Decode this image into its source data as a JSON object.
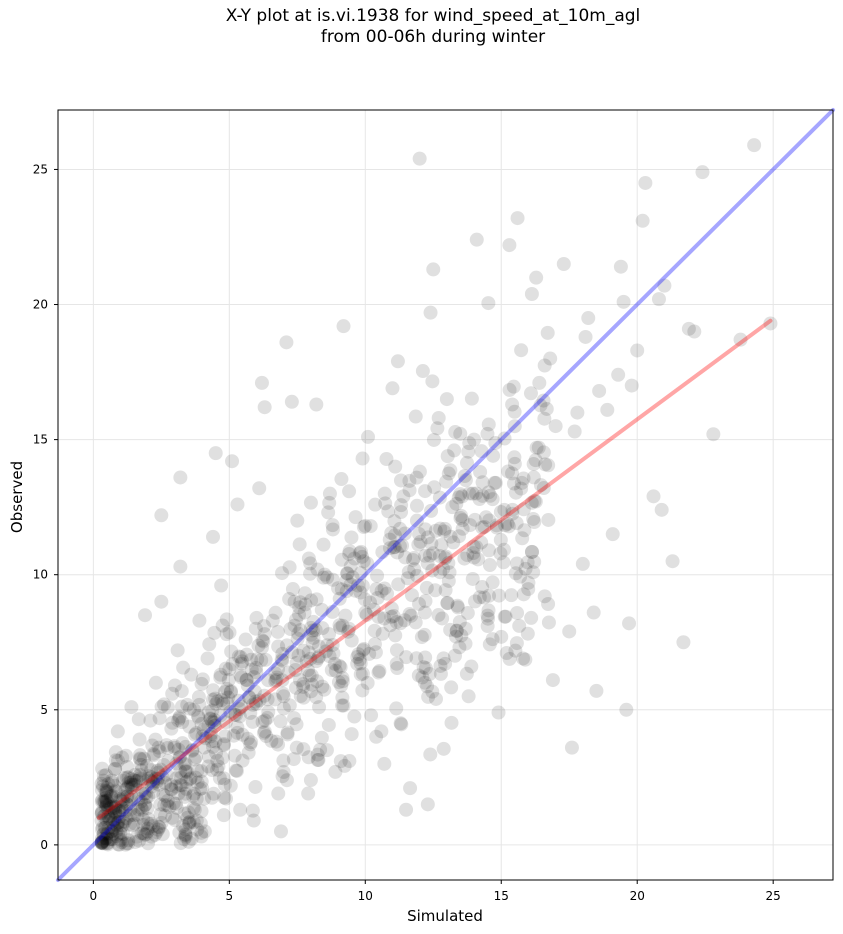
{
  "chart_data": {
    "type": "scatter",
    "title_line1": "X-Y plot at is.vi.1938 for wind_speed_at_10m_agl",
    "title_line2": "from 00-06h during winter",
    "xlabel": "Simulated",
    "ylabel": "Observed",
    "xlim": [
      -1.3,
      27.2
    ],
    "ylim": [
      -1.3,
      27.2
    ],
    "xticks": [
      0,
      5,
      10,
      15,
      20,
      25
    ],
    "yticks": [
      0,
      5,
      10,
      15,
      20,
      25
    ],
    "grid": true,
    "point_color": "#000000",
    "point_alpha": 0.12,
    "lines": [
      {
        "role": "1:1",
        "color": "#0000ff",
        "alpha": 0.35,
        "x": [
          -1.3,
          27.2
        ],
        "y": [
          -1.3,
          27.2
        ]
      },
      {
        "role": "fit",
        "color": "#ff0000",
        "alpha": 0.35,
        "x": [
          0.2,
          24.9
        ],
        "y": [
          1.0,
          19.4
        ]
      }
    ],
    "points": {
      "x": [
        12.0,
        24.3,
        22.4,
        20.3,
        14.1,
        15.3,
        15.6,
        11.2,
        12.5,
        7.1,
        12.4,
        20.2,
        19.4,
        21.9,
        17.3,
        18.2,
        6.2,
        6.3,
        7.3,
        8.2,
        9.2,
        10.1,
        11.0,
        4.5,
        3.2,
        5.1,
        2.5,
        13.0,
        14.7,
        16.4,
        17.7,
        18.9,
        19.8,
        21.0,
        22.8,
        23.8,
        24.9,
        20.9,
        21.3,
        19.7,
        18.4,
        17.5,
        16.9,
        16.1,
        15.8,
        15.2,
        13.7,
        13.2,
        12.8,
        11.8,
        11.4,
        10.6,
        10.2,
        9.6,
        9.0,
        8.4,
        7.8,
        7.2,
        6.6,
        6.0,
        5.6,
        4.9,
        4.2,
        3.6,
        3.0,
        2.6,
        2.1,
        1.7,
        1.2,
        0.8,
        0.5,
        0.3,
        1.0,
        1.5,
        2.0,
        2.8,
        3.4,
        4.0,
        4.6,
        5.2,
        5.8,
        6.4,
        7.0,
        7.6,
        8.2,
        8.8,
        9.4,
        10.0,
        10.8,
        11.6,
        12.2,
        12.9,
        13.5,
        14.2,
        14.8,
        15.5,
        16.3,
        17.0,
        17.8,
        18.6,
        19.3,
        20.0,
        0.6,
        1.1,
        1.6,
        2.2,
        2.9,
        3.5,
        4.1,
        0.9,
        1.4,
        2.3,
        3.1,
        3.9,
        4.7,
        1.8,
        2.7,
        3.8,
        5.4,
        6.8,
        8.0,
        9.1,
        10.4,
        11.3,
        12.6,
        13.9,
        15.0,
        16.6,
        18.0,
        19.1,
        20.6,
        12.1,
        13.3,
        14.5,
        11.9,
        10.9,
        9.8,
        8.6,
        7.4,
        6.2,
        5.0,
        3.7,
        2.4,
        1.3,
        17.6,
        18.5,
        19.6,
        21.7,
        13.8,
        14.9,
        16.0,
        9.5,
        8.9,
        7.9,
        10.7,
        11.5,
        12.3,
        6.9,
        5.9,
        4.8,
        3.3,
        2.0,
        0.7,
        1.9,
        2.5,
        3.2,
        4.4,
        5.3,
        6.1,
        7.5,
        8.7,
        9.9,
        11.1,
        12.7,
        14.0,
        15.4,
        16.8,
        18.1,
        19.5,
        20.8,
        22.1
      ],
      "y": [
        25.4,
        25.9,
        24.9,
        24.5,
        22.4,
        22.2,
        23.2,
        17.9,
        21.3,
        18.6,
        19.7,
        23.1,
        21.4,
        19.1,
        21.5,
        19.5,
        17.1,
        16.2,
        16.4,
        16.3,
        19.2,
        15.1,
        16.9,
        14.5,
        13.6,
        14.2,
        12.2,
        16.5,
        14.4,
        17.1,
        15.3,
        16.1,
        17.0,
        20.7,
        15.2,
        18.7,
        19.3,
        12.4,
        10.5,
        8.2,
        8.6,
        7.9,
        6.1,
        8.4,
        6.9,
        7.1,
        13.5,
        12.5,
        11.1,
        10.2,
        12.9,
        9.4,
        11.8,
        10.6,
        9.5,
        8.7,
        8.9,
        9.1,
        8.3,
        8.4,
        7.6,
        7.8,
        6.9,
        6.3,
        5.9,
        5.2,
        4.6,
        3.9,
        3.3,
        2.8,
        1.6,
        0.9,
        0.6,
        1.1,
        0.8,
        1.4,
        0.3,
        2.1,
        2.9,
        3.3,
        3.8,
        4.7,
        5.5,
        6.1,
        6.8,
        7.4,
        8.0,
        8.6,
        9.3,
        10.1,
        10.7,
        11.6,
        12.1,
        12.8,
        13.4,
        14.1,
        14.7,
        15.5,
        16.0,
        16.8,
        17.4,
        18.3,
        0.2,
        0.4,
        0.3,
        0.7,
        1.0,
        1.2,
        0.5,
        4.2,
        5.1,
        6.0,
        7.2,
        8.3,
        9.6,
        2.0,
        2.6,
        1.7,
        1.3,
        1.9,
        2.4,
        3.1,
        4.0,
        4.5,
        5.4,
        6.6,
        7.7,
        9.2,
        10.4,
        11.5,
        12.9,
        6.2,
        7.0,
        8.1,
        12.0,
        11.3,
        10.8,
        9.9,
        9.0,
        7.3,
        6.5,
        5.0,
        3.6,
        2.5,
        3.6,
        5.7,
        5.0,
        7.5,
        5.5,
        4.9,
        9.7,
        4.1,
        2.7,
        1.9,
        3.0,
        1.3,
        1.5,
        0.5,
        0.9,
        1.1,
        0.7,
        0.6,
        0.4,
        8.5,
        9.0,
        10.3,
        11.4,
        12.6,
        13.2,
        12.0,
        13.0,
        14.3,
        14.0,
        15.8,
        15.0,
        16.3,
        18.0,
        18.8,
        20.1,
        20.2,
        19.0
      ]
    }
  }
}
